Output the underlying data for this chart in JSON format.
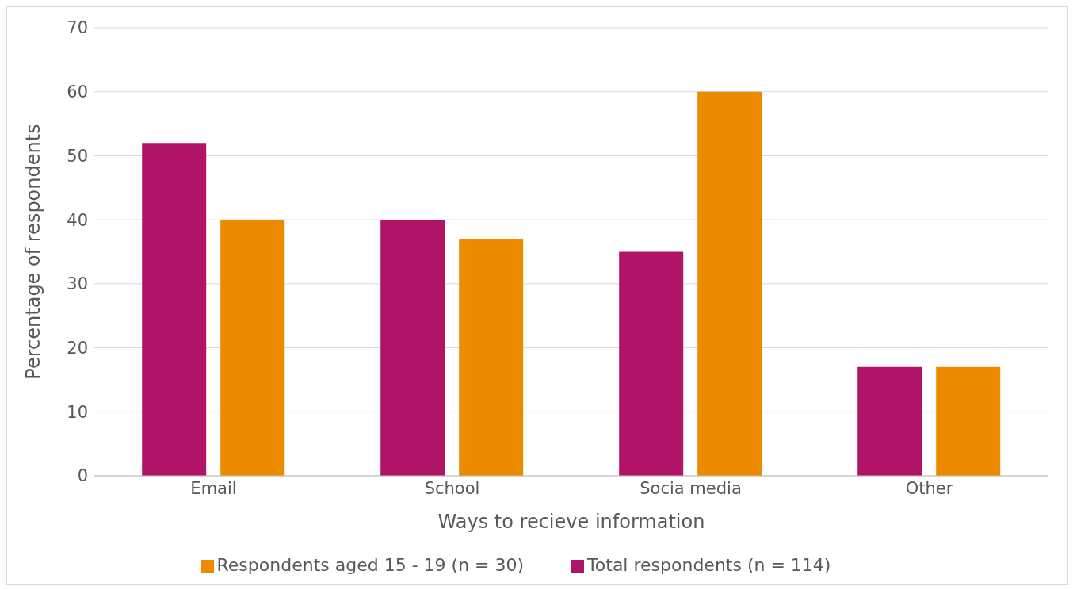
{
  "chart_data": {
    "type": "bar",
    "xlabel": "Ways to recieve information",
    "ylabel": "Percentage of respondents",
    "categories": [
      "Email",
      "School",
      "Socia media",
      "Other"
    ],
    "series": [
      {
        "name": "Total respondents (n = 114)",
        "color": "#b01467",
        "values": [
          52,
          40,
          35,
          17
        ]
      },
      {
        "name": "Respondents aged 15 - 19 (n = 30)",
        "color": "#ed8b00",
        "values": [
          40,
          37,
          60,
          17
        ]
      }
    ],
    "ylim": [
      0,
      70
    ],
    "yticks": [
      0,
      10,
      20,
      30,
      40,
      50,
      60,
      70
    ],
    "grid": "y",
    "legend": "bottom"
  }
}
